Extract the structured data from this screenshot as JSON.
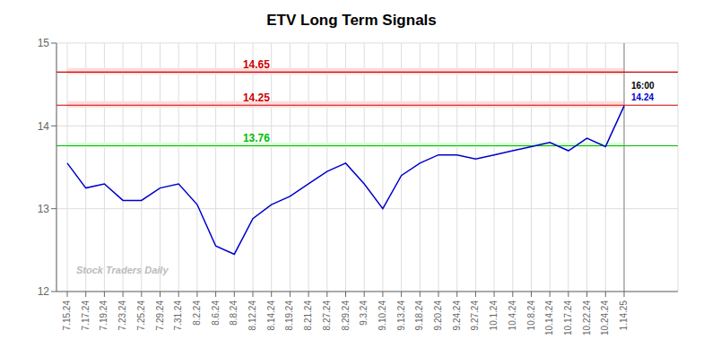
{
  "chart_data": {
    "type": "line",
    "title": "ETV Long Term Signals",
    "categories": [
      "7.15.24",
      "7.17.24",
      "7.19.24",
      "7.23.24",
      "7.25.24",
      "7.29.24",
      "7.31.24",
      "8.2.24",
      "8.6.24",
      "8.8.24",
      "8.12.24",
      "8.14.24",
      "8.19.24",
      "8.21.24",
      "8.27.24",
      "8.29.24",
      "9.3.24",
      "9.10.24",
      "9.13.24",
      "9.18.24",
      "9.20.24",
      "9.24.24",
      "9.27.24",
      "10.1.24",
      "10.4.24",
      "10.8.24",
      "10.14.24",
      "10.17.24",
      "10.22.24",
      "10.24.24",
      "1.14.25"
    ],
    "values": [
      13.55,
      13.25,
      13.3,
      13.1,
      13.1,
      13.25,
      13.3,
      13.05,
      12.55,
      12.45,
      12.88,
      13.05,
      13.15,
      13.3,
      13.45,
      13.55,
      13.3,
      13.0,
      13.4,
      13.55,
      13.65,
      13.65,
      13.6,
      13.65,
      13.7,
      13.75,
      13.8,
      13.7,
      13.85,
      13.75,
      14.24
    ],
    "color": "#0000cc",
    "ylim": [
      12,
      15
    ],
    "yticks": [
      12,
      13,
      14,
      15
    ],
    "grid": true,
    "reference_lines": [
      {
        "value": 13.76,
        "label": "13.76",
        "color": "#00bb00",
        "band": [
          13.74,
          13.8
        ],
        "band_color": "#ddffdd"
      },
      {
        "value": 14.25,
        "label": "14.25",
        "color": "#cc0000",
        "band": [
          14.22,
          14.3
        ],
        "band_color": "#ffdddd"
      },
      {
        "value": 14.65,
        "label": "14.65",
        "color": "#cc0000",
        "band": [
          14.62,
          14.7
        ],
        "band_color": "#ffdddd"
      }
    ],
    "annotations": [
      {
        "text": "16:00",
        "color": "#000000"
      },
      {
        "text": "14.24",
        "color": "#0000cc"
      }
    ],
    "watermark": "Stock Traders Daily",
    "watermark_color": "#bbbbbb"
  }
}
